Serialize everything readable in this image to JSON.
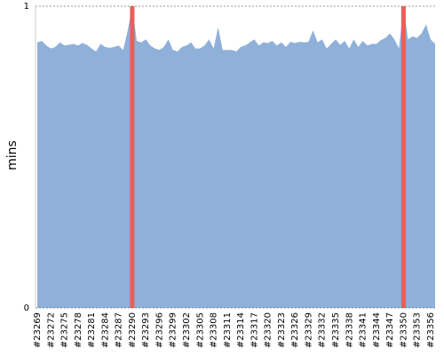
{
  "chart_data": {
    "type": "area",
    "y_label": "mins",
    "categories": [
      "#23269",
      null,
      null,
      "#23272",
      null,
      null,
      "#23275",
      null,
      null,
      "#23278",
      null,
      null,
      "#23281",
      null,
      null,
      "#23284",
      null,
      null,
      "#23287",
      null,
      null,
      "#23290",
      null,
      null,
      "#23293",
      null,
      null,
      "#23296",
      null,
      null,
      "#23299",
      null,
      null,
      "#23302",
      null,
      null,
      "#23305",
      null,
      null,
      "#23308",
      null,
      null,
      "#23311",
      null,
      null,
      "#23314",
      null,
      null,
      "#23317",
      null,
      null,
      "#23320",
      null,
      null,
      "#23323",
      null,
      null,
      "#23326",
      null,
      null,
      "#23329",
      null,
      null,
      "#23332",
      null,
      null,
      "#23335",
      null,
      null,
      "#23338",
      null,
      null,
      "#23341",
      null,
      null,
      "#23344",
      null,
      null,
      "#23347",
      null,
      null,
      "#23350",
      null,
      null,
      "#23353",
      null,
      null,
      "#23356",
      null
    ],
    "series": [
      {
        "type": "area",
        "color": "#8fb0d9",
        "values": [
          0.88,
          0.885,
          0.87,
          0.86,
          0.865,
          0.88,
          0.87,
          0.872,
          0.875,
          0.87,
          0.878,
          0.872,
          0.86,
          0.85,
          0.875,
          0.865,
          0.862,
          0.865,
          0.87,
          0.855,
          0.92,
          1,
          0.885,
          0.88,
          0.89,
          0.87,
          0.86,
          0.855,
          0.865,
          0.89,
          0.855,
          0.85,
          0.865,
          0.87,
          0.88,
          0.86,
          0.86,
          0.87,
          0.89,
          0.86,
          0.93,
          0.855,
          0.855,
          0.855,
          0.85,
          0.865,
          0.87,
          0.88,
          0.89,
          0.87,
          0.88,
          0.878,
          0.885,
          0.87,
          0.88,
          0.865,
          0.882,
          0.878,
          0.882,
          0.88,
          0.882,
          0.92,
          0.88,
          0.89,
          0.86,
          0.875,
          0.89,
          0.872,
          0.885,
          0.86,
          0.89,
          0.865,
          0.885,
          0.87,
          0.875,
          0.875,
          0.888,
          0.895,
          0.91,
          0.89,
          0.86,
          1,
          0.89,
          0.9,
          0.895,
          0.91,
          0.94,
          0.89,
          0.875
        ]
      },
      {
        "type": "bar",
        "color": "#e8605a",
        "values": [
          null,
          null,
          null,
          null,
          null,
          null,
          null,
          null,
          null,
          null,
          null,
          null,
          null,
          null,
          null,
          null,
          null,
          null,
          null,
          null,
          null,
          1,
          null,
          null,
          null,
          null,
          null,
          null,
          null,
          null,
          null,
          null,
          null,
          null,
          null,
          null,
          null,
          null,
          null,
          null,
          null,
          null,
          null,
          null,
          null,
          null,
          null,
          null,
          null,
          null,
          null,
          null,
          null,
          null,
          null,
          null,
          null,
          null,
          null,
          null,
          null,
          null,
          null,
          null,
          null,
          null,
          null,
          null,
          null,
          null,
          null,
          null,
          null,
          null,
          null,
          null,
          null,
          null,
          null,
          null,
          null,
          1,
          null,
          null,
          null,
          null,
          null,
          null,
          null
        ]
      }
    ],
    "ylim": [
      0,
      1
    ],
    "yticks": [
      0,
      1
    ],
    "grid": true
  }
}
